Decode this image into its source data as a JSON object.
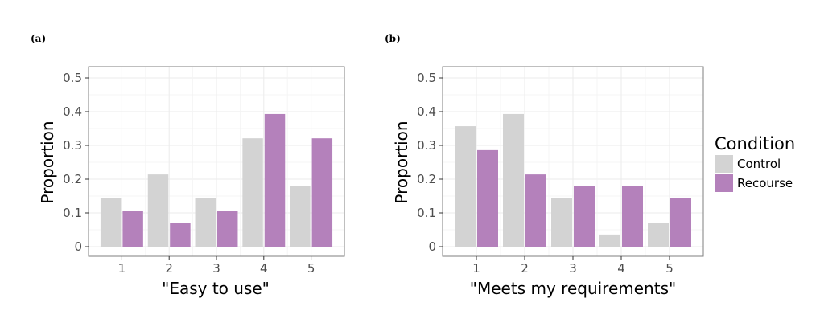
{
  "chart_data": [
    {
      "panel": "(a)",
      "type": "bar",
      "categories": [
        "1",
        "2",
        "3",
        "4",
        "5"
      ],
      "series": [
        {
          "name": "Control",
          "values": [
            0.143,
            0.214,
            0.143,
            0.321,
            0.179
          ]
        },
        {
          "name": "Recourse",
          "values": [
            0.107,
            0.071,
            0.107,
            0.393,
            0.321
          ]
        }
      ],
      "xlabel": "\"Easy to use\"",
      "ylabel": "Proportion",
      "ylim": [
        0,
        0.5
      ],
      "yticks": [
        0,
        0.1,
        0.2,
        0.3,
        0.4,
        0.5
      ],
      "ytick_labels": [
        "0",
        "0.1",
        "0.2",
        "0.3",
        "0.4",
        "0.5"
      ],
      "grid": true
    },
    {
      "panel": "(b)",
      "type": "bar",
      "categories": [
        "1",
        "2",
        "3",
        "4",
        "5"
      ],
      "series": [
        {
          "name": "Control",
          "values": [
            0.357,
            0.393,
            0.143,
            0.036,
            0.071
          ]
        },
        {
          "name": "Recourse",
          "values": [
            0.286,
            0.214,
            0.179,
            0.179,
            0.143
          ]
        }
      ],
      "xlabel": "\"Meets my requirements\"",
      "ylabel": "Proportion",
      "ylim": [
        0,
        0.5
      ],
      "yticks": [
        0,
        0.1,
        0.2,
        0.3,
        0.4,
        0.5
      ],
      "ytick_labels": [
        "0",
        "0.1",
        "0.2",
        "0.3",
        "0.4",
        "0.5"
      ],
      "grid": true
    }
  ],
  "legend": {
    "title": "Condition",
    "placement": "right",
    "items": [
      {
        "label": "Control",
        "color": "#d3d3d3"
      },
      {
        "label": "Recourse",
        "color": "#b481bb"
      }
    ]
  },
  "colors": {
    "control": "#d3d3d3",
    "recourse": "#b481bb",
    "grid": "#ebebeb",
    "panel_border": "#7f7f7f"
  }
}
